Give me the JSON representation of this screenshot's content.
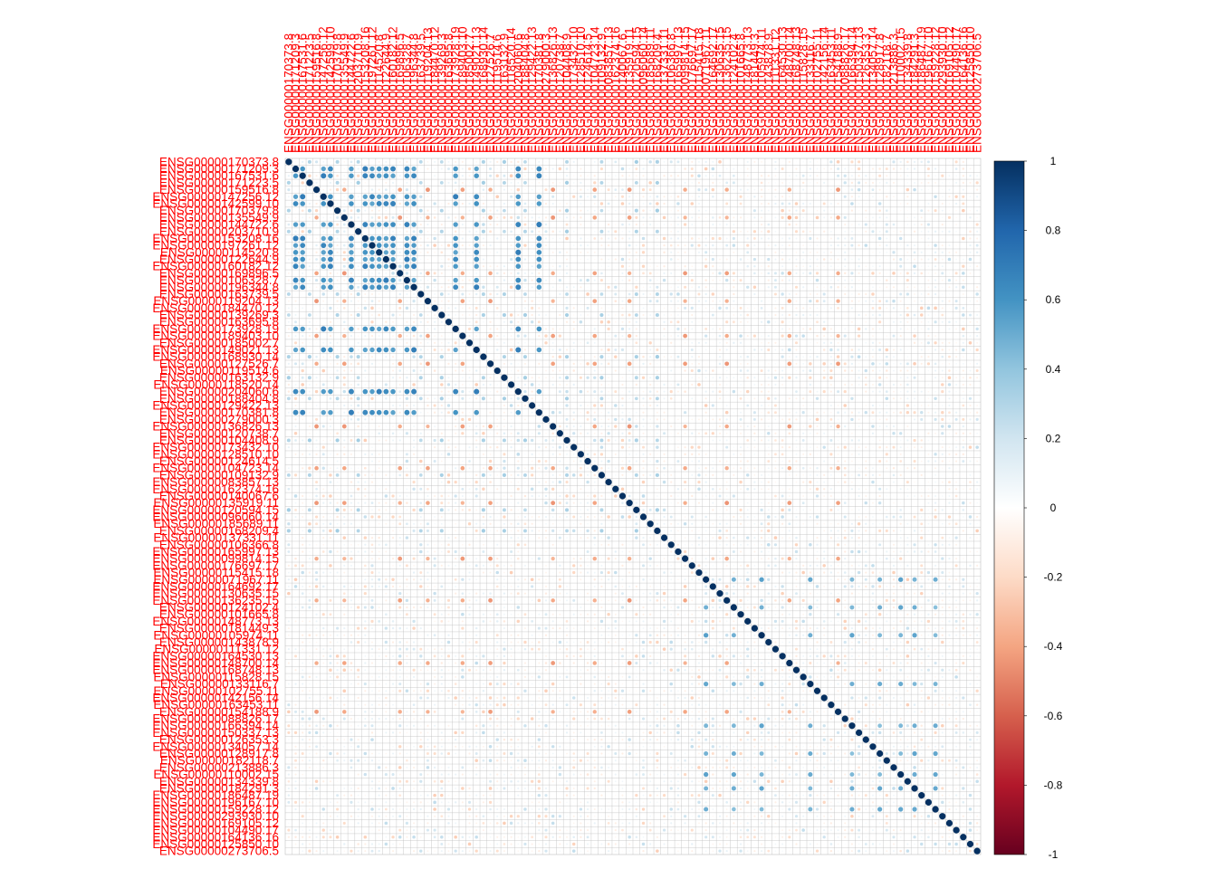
{
  "chart_data": {
    "type": "heatmap",
    "subtype": "correlation-circle-matrix",
    "title": "",
    "matrix_size": 100,
    "row_labels": [
      "ENSG00000170373.8",
      "ENSG00000171209.3",
      "ENSG00000167531.6",
      "ENSG00000171223.5",
      "ENSG00000159516.8",
      "ENSG00000147256.12",
      "ENSG00000142599.10",
      "ENSG00000170379.8",
      "ENSG00000135549.9",
      "ENSG00000144722.6",
      "ENSG00000203710.9",
      "ENSG00000153208.16",
      "ENSG00000197261.12",
      "ENSG00000114520.8",
      "ENSG00000122644.9",
      "ENSG00000160182.12",
      "ENSG00000169896.5",
      "ENSG00000106328.7",
      "ENSG00000196344.8",
      "ENSG00000163739.5",
      "ENSG00000119204.13",
      "ENSG00000184470.12",
      "ENSG00000139269.3",
      "ENSG00000163695.8",
      "ENSG00000173928.19",
      "ENSG00000189403.10",
      "ENSG00000185002.7",
      "ENSG00000149021.13",
      "ENSG00000168930.14",
      "ENSG00000127526.7",
      "ENSG00000119514.6",
      "ENSG00000163132.9",
      "ENSG00000118520.14",
      "ENSG00000204060.6",
      "ENSG00000188404.8",
      "ENSG00000129422.13",
      "ENSG00000170381.8",
      "ENSG00000279000.3",
      "ENSG00000136826.13",
      "ENSG00000120738.7",
      "ENSG00000104408.9",
      "ENSG00000173432.10",
      "ENSG00000128510.10",
      "ENSG00000124614.5",
      "ENSG00000104723.14",
      "ENSG00000109132.9",
      "ENSG00000083857.13",
      "ENSG00000162374.16",
      "ENSG00000140067.6",
      "ENSG00000135919.11",
      "ENSG00000120594.15",
      "ENSG00000096060.14",
      "ENSG00000185689.11",
      "ENSG00000168209.4",
      "ENSG00000137331.11",
      "ENSG00000106366.8",
      "ENSG00000165997.13",
      "ENSG00000099814.15",
      "ENSG00000176697.17",
      "ENSG00000115415.18",
      "ENSG00000071967.11",
      "ENSG00000164692.17",
      "ENSG00000130635.15",
      "ENSG00000136235.15",
      "ENSG00000124102.4",
      "ENSG00000101665.8",
      "ENSG00000148773.13",
      "ENSG00000181449.3",
      "ENSG00000105974.11",
      "ENSG00000143878.9",
      "ENSG00000111331.12",
      "ENSG00000164530.13",
      "ENSG00000148700.14",
      "ENSG00000168748.13",
      "ENSG00000115828.15",
      "ENSG00000133116.7",
      "ENSG00000102755.11",
      "ENSG00000142156.14",
      "ENSG00000163453.11",
      "ENSG00000154188.9",
      "ENSG00000088826.17",
      "ENSG00000166394.14",
      "ENSG00000150337.13",
      "ENSG00000126353.3",
      "ENSG00000134057.14",
      "ENSG00000128917.8",
      "ENSG00000182118.7",
      "ENSG00000213886.3",
      "ENSG00000110002.15",
      "ENSG00000134339.8",
      "ENSG00000184291.3",
      "ENSG00000186487.19",
      "ENSG00000196167.10",
      "ENSG00000159228.12",
      "ENSG00000293930.10",
      "ENSG00000169105.12",
      "ENSG00000104490.17",
      "ENSG00000164136.16",
      "ENSG00000125850.10",
      "ENSG00000273706.5"
    ],
    "colorbar": {
      "min": -1,
      "max": 1,
      "ticks": [
        "1",
        "0.8",
        "0.6",
        "0.4",
        "0.2",
        "0",
        "-0.2",
        "-0.4",
        "-0.6",
        "-0.8",
        "-1"
      ],
      "low_color": "#67001f",
      "mid_color": "#ffffff",
      "high_color": "#053061"
    },
    "diagonal_value": 1,
    "label_color": "#ff0000",
    "grid_color": "#bebebe",
    "correlation_blocks": [
      {
        "rows": [
          1,
          2,
          5,
          6,
          9,
          11,
          12,
          13,
          14,
          15,
          17,
          18,
          24,
          27,
          33,
          36
        ],
        "value": 0.7
      },
      {
        "rows": [
          0,
          3,
          7,
          10,
          19,
          22,
          28,
          31,
          34,
          40,
          45,
          50,
          53
        ],
        "value": 0.35
      },
      {
        "rows": [
          4,
          8,
          16,
          20,
          25,
          29,
          38,
          44,
          49,
          57,
          63,
          72,
          79
        ],
        "value": -0.45
      },
      {
        "rows": [
          60,
          64,
          68,
          75,
          81,
          85,
          88,
          90,
          93
        ],
        "value": 0.55
      }
    ]
  }
}
